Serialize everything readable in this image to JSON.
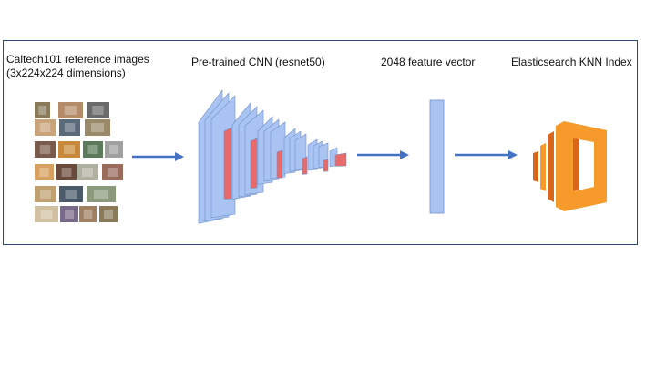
{
  "stages": {
    "images": {
      "line1": "Caltech101 reference images",
      "line2": "(3x224x224 dimensions)"
    },
    "cnn": {
      "label": "Pre-trained CNN (resnet50)"
    },
    "vector": {
      "label": "2048 feature vector"
    },
    "index": {
      "label": "Elasticsearch KNN Index"
    }
  },
  "colors": {
    "border": "#2f4a72",
    "layer_blue": "#a9c4f2",
    "layer_red": "#e86a6a",
    "arrow": "#4472c4",
    "logo_light": "#f59a2b",
    "logo_dark": "#d9661a"
  },
  "icons": {
    "thumbnails": "sample-image-thumbnails",
    "logo": "elasticsearch-knn-logo"
  }
}
